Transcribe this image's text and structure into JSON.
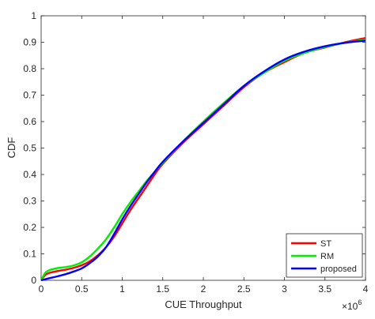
{
  "chart_data": {
    "type": "line",
    "xlabel": "CUE Throughput",
    "ylabel": "CDF",
    "x_exponent_label": "×10",
    "x_exponent_value": "6",
    "xlim": [
      0,
      4
    ],
    "ylim": [
      0,
      1
    ],
    "x_ticks": [
      {
        "value": 0,
        "label": "0"
      },
      {
        "value": 0.5,
        "label": "0.5"
      },
      {
        "value": 1,
        "label": "1"
      },
      {
        "value": 1.5,
        "label": "1.5"
      },
      {
        "value": 2,
        "label": "2"
      },
      {
        "value": 2.5,
        "label": "2.5"
      },
      {
        "value": 3,
        "label": "3"
      },
      {
        "value": 3.5,
        "label": "3.5"
      },
      {
        "value": 4,
        "label": "4"
      }
    ],
    "y_ticks": [
      {
        "value": 0,
        "label": "0"
      },
      {
        "value": 0.1,
        "label": "0.1"
      },
      {
        "value": 0.2,
        "label": "0.2"
      },
      {
        "value": 0.3,
        "label": "0.3"
      },
      {
        "value": 0.4,
        "label": "0.4"
      },
      {
        "value": 0.5,
        "label": "0.5"
      },
      {
        "value": 0.6,
        "label": "0.6"
      },
      {
        "value": 0.7,
        "label": "0.7"
      },
      {
        "value": 0.8,
        "label": "0.8"
      },
      {
        "value": 0.9,
        "label": "0.9"
      },
      {
        "value": 1,
        "label": "1"
      }
    ],
    "grid": false,
    "legend_position": "bottom-right",
    "series": [
      {
        "name": "ST",
        "color": "#ff0000",
        "x": [
          0,
          0.05,
          0.1,
          0.2,
          0.3,
          0.4,
          0.5,
          0.6,
          0.7,
          0.8,
          0.9,
          1.0,
          1.1,
          1.2,
          1.3,
          1.4,
          1.5,
          1.75,
          2.0,
          2.25,
          2.5,
          2.75,
          3.0,
          3.25,
          3.5,
          3.75,
          4.0
        ],
        "y": [
          0.0,
          0.02,
          0.028,
          0.035,
          0.04,
          0.047,
          0.057,
          0.072,
          0.095,
          0.125,
          0.165,
          0.215,
          0.265,
          0.31,
          0.355,
          0.4,
          0.44,
          0.52,
          0.59,
          0.66,
          0.73,
          0.785,
          0.825,
          0.86,
          0.88,
          0.9,
          0.916
        ]
      },
      {
        "name": "RM",
        "color": "#00ee00",
        "x": [
          0,
          0.05,
          0.1,
          0.2,
          0.3,
          0.4,
          0.5,
          0.6,
          0.7,
          0.8,
          0.9,
          1.0,
          1.1,
          1.2,
          1.3,
          1.4,
          1.5,
          1.75,
          2.0,
          2.25,
          2.5,
          2.75,
          3.0,
          3.25,
          3.5,
          3.75,
          4.0
        ],
        "y": [
          0.0,
          0.028,
          0.038,
          0.046,
          0.05,
          0.056,
          0.068,
          0.09,
          0.12,
          0.155,
          0.2,
          0.25,
          0.295,
          0.335,
          0.375,
          0.41,
          0.445,
          0.525,
          0.6,
          0.67,
          0.735,
          0.785,
          0.83,
          0.86,
          0.882,
          0.898,
          0.91
        ]
      },
      {
        "name": "proposed",
        "color": "#0000ff",
        "x": [
          0,
          0.05,
          0.1,
          0.2,
          0.3,
          0.4,
          0.5,
          0.6,
          0.7,
          0.8,
          0.9,
          1.0,
          1.1,
          1.2,
          1.3,
          1.4,
          1.5,
          1.75,
          2.0,
          2.25,
          2.5,
          2.75,
          3.0,
          3.25,
          3.5,
          3.75,
          4.0
        ],
        "y": [
          0.0,
          0.004,
          0.008,
          0.015,
          0.023,
          0.033,
          0.045,
          0.065,
          0.09,
          0.125,
          0.175,
          0.23,
          0.28,
          0.325,
          0.37,
          0.41,
          0.448,
          0.525,
          0.595,
          0.665,
          0.735,
          0.79,
          0.835,
          0.865,
          0.885,
          0.898,
          0.906
        ]
      }
    ]
  }
}
